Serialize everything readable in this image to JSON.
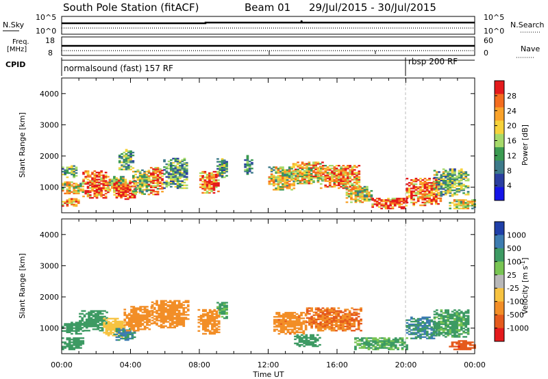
{
  "header": {
    "station": "South Pole Station (fitACF)",
    "beam": "Beam 01",
    "date_range": "29/Jul/2015 - 30/Jul/2015"
  },
  "status_panels": {
    "nsky_label": "N.Sky",
    "nsearch_label": "N.Search",
    "nave_label": "Nave",
    "freq_label_line1": "Freq.",
    "freq_label_line2": "[MHz]",
    "cpid_label": "CPID",
    "noise_ticks": [
      "10^5",
      "10^0"
    ],
    "noise_right_ticks": [
      "10^5",
      "10^0"
    ],
    "freq_ticks": [
      "18",
      "8"
    ],
    "nave_ticks": [
      "60",
      "0"
    ],
    "modes": [
      {
        "label": "normalsound (fast) 157 RF",
        "start_hour": 0,
        "end_hour": 20
      },
      {
        "label": "rbsp 200 RF",
        "start_hour": 20,
        "end_hour": 24
      }
    ]
  },
  "chart_data": [
    {
      "type": "heatmap",
      "parameter": "Power",
      "xlabel": "Time UT",
      "ylabel": "Slant Range [km]",
      "xlim": [
        0,
        24
      ],
      "ylim": [
        180,
        4500
      ],
      "x_ticks": [
        "00:00",
        "04:00",
        "08:00",
        "12:00",
        "16:00",
        "20:00",
        "00:00"
      ],
      "y_ticks": [
        "1000",
        "2000",
        "3000",
        "4000"
      ],
      "colorbar_label": "Power [dB]",
      "colorbar_ticks": [
        "28",
        "24",
        "20",
        "16",
        "12",
        "8",
        "4"
      ],
      "colorbar_colors": [
        "#e41a1c",
        "#f46d1f",
        "#f9a22a",
        "#f6d23b",
        "#a6d96a",
        "#3b9a51",
        "#3d7a8a",
        "#2a3ea0",
        "#1414e8"
      ],
      "mode_change_hour": 20,
      "blobs": [
        {
          "t": [
            0.0,
            1.0
          ],
          "r": [
            380,
            620
          ],
          "v": 22
        },
        {
          "t": [
            0.0,
            1.2
          ],
          "r": [
            780,
            1180
          ],
          "v": 18
        },
        {
          "t": [
            0.0,
            0.9
          ],
          "r": [
            1300,
            1700
          ],
          "v": 12
        },
        {
          "t": [
            1.2,
            2.7
          ],
          "r": [
            640,
            1500
          ],
          "v": 26
        },
        {
          "t": [
            2.6,
            3.7
          ],
          "r": [
            820,
            1350
          ],
          "v": 18
        },
        {
          "t": [
            3.0,
            4.3
          ],
          "r": [
            600,
            1200
          ],
          "v": 27
        },
        {
          "t": [
            3.3,
            4.1
          ],
          "r": [
            1550,
            2200
          ],
          "v": 12
        },
        {
          "t": [
            4.1,
            5.1
          ],
          "r": [
            760,
            1550
          ],
          "v": 15
        },
        {
          "t": [
            5.0,
            5.9
          ],
          "r": [
            750,
            1650
          ],
          "v": 22
        },
        {
          "t": [
            5.9,
            7.3
          ],
          "r": [
            950,
            1900
          ],
          "v": 12
        },
        {
          "t": [
            8.0,
            9.1
          ],
          "r": [
            800,
            1500
          ],
          "v": 23
        },
        {
          "t": [
            9.0,
            9.6
          ],
          "r": [
            1300,
            1900
          ],
          "v": 12
        },
        {
          "t": [
            10.6,
            11.0
          ],
          "r": [
            1400,
            2000
          ],
          "v": 10
        },
        {
          "t": [
            12.0,
            13.6
          ],
          "r": [
            900,
            1650
          ],
          "v": 17
        },
        {
          "t": [
            13.4,
            15.2
          ],
          "r": [
            1100,
            1800
          ],
          "v": 19
        },
        {
          "t": [
            15.0,
            17.3
          ],
          "r": [
            950,
            1700
          ],
          "v": 22
        },
        {
          "t": [
            16.5,
            18.0
          ],
          "r": [
            500,
            1000
          ],
          "v": 17
        },
        {
          "t": [
            18.0,
            20.0
          ],
          "r": [
            300,
            650
          ],
          "v": 26
        },
        {
          "t": [
            20.0,
            22.0
          ],
          "r": [
            400,
            1300
          ],
          "v": 25
        },
        {
          "t": [
            21.6,
            23.6
          ],
          "r": [
            700,
            1600
          ],
          "v": 13
        },
        {
          "t": [
            22.5,
            24.0
          ],
          "r": [
            300,
            600
          ],
          "v": 18
        }
      ]
    },
    {
      "type": "heatmap",
      "parameter": "Velocity",
      "xlabel": "Time UT",
      "ylabel": "Slant Range [km]",
      "xlim": [
        0,
        24
      ],
      "ylim": [
        180,
        4500
      ],
      "x_ticks": [
        "00:00",
        "04:00",
        "08:00",
        "12:00",
        "16:00",
        "20:00",
        "00:00"
      ],
      "y_ticks": [
        "1000",
        "2000",
        "3000",
        "4000"
      ],
      "colorbar_label": "Velocity [m s",
      "colorbar_label_sup": "-1",
      "colorbar_label_end": "]",
      "colorbar_ticks": [
        "1000",
        "500",
        "100",
        "25",
        "-25",
        "-100",
        "-500",
        "-1000"
      ],
      "colorbar_colors": [
        "#1f3fa8",
        "#3d7cb0",
        "#3d9a63",
        "#78c453",
        "#b8b8b8",
        "#f7c341",
        "#f28e27",
        "#e55a1d",
        "#e41a1c"
      ],
      "mode_change_hour": 20,
      "blobs": [
        {
          "t": [
            0.0,
            1.2
          ],
          "r": [
            300,
            700
          ],
          "v": 300
        },
        {
          "t": [
            0.0,
            1.2
          ],
          "r": [
            800,
            1200
          ],
          "v": 150
        },
        {
          "t": [
            1.0,
            2.6
          ],
          "r": [
            900,
            1550
          ],
          "v": 250
        },
        {
          "t": [
            2.4,
            3.6
          ],
          "r": [
            700,
            1300
          ],
          "v": -40
        },
        {
          "t": [
            3.0,
            4.2
          ],
          "r": [
            600,
            1000
          ],
          "v": 500
        },
        {
          "t": [
            3.6,
            5.2
          ],
          "r": [
            900,
            1700
          ],
          "v": -350
        },
        {
          "t": [
            5.2,
            7.4
          ],
          "r": [
            1000,
            1900
          ],
          "v": -150
        },
        {
          "t": [
            7.9,
            9.2
          ],
          "r": [
            800,
            1600
          ],
          "v": -200
        },
        {
          "t": [
            9.0,
            9.6
          ],
          "r": [
            1300,
            1800
          ],
          "v": 120
        },
        {
          "t": [
            12.3,
            14.2
          ],
          "r": [
            800,
            1500
          ],
          "v": -400
        },
        {
          "t": [
            14.2,
            17.4
          ],
          "r": [
            900,
            1650
          ],
          "v": -500
        },
        {
          "t": [
            13.5,
            15.0
          ],
          "r": [
            400,
            800
          ],
          "v": 200
        },
        {
          "t": [
            17.0,
            20.0
          ],
          "r": [
            300,
            700
          ],
          "v": 110
        },
        {
          "t": [
            20.0,
            21.8
          ],
          "r": [
            650,
            1350
          ],
          "v": 500
        },
        {
          "t": [
            21.6,
            23.6
          ],
          "r": [
            700,
            1600
          ],
          "v": 120
        },
        {
          "t": [
            22.5,
            24.0
          ],
          "r": [
            300,
            600
          ],
          "v": -800
        }
      ]
    }
  ]
}
